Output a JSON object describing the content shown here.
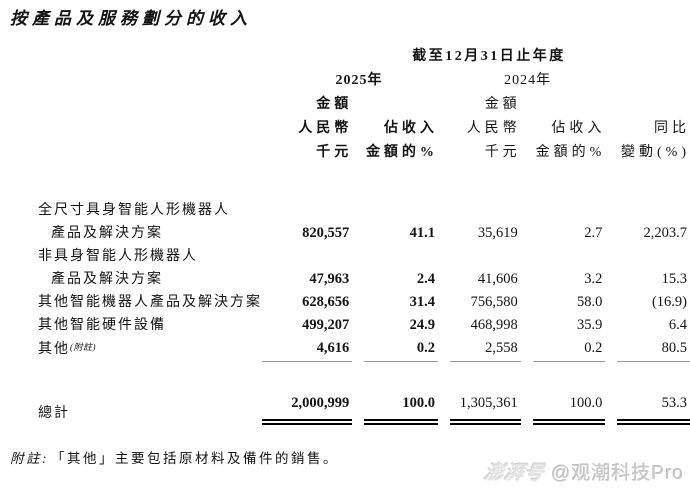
{
  "page": {
    "background": "#ffffff",
    "text_color": "#141414",
    "rule_color": "#9b9b9b",
    "total_rule_color": "#000000"
  },
  "title": "按產品及服務劃分的收入",
  "table": {
    "period_header": "截至12月31日止年度",
    "years": {
      "y2025": "2025年",
      "y2024": "2024年"
    },
    "col_headers": {
      "amount_line1": "金額",
      "amount_line2": "人民幣",
      "amount_line3": "千元",
      "share_line1": "佔收入",
      "share_line2": "金額的%",
      "yoy_line1": "同比",
      "yoy_line2": "變動(%)"
    },
    "rows": [
      {
        "label_lines": [
          "全尺寸具身智能人形機器人",
          "產品及解決方案"
        ],
        "label_note": "",
        "v2025": "820,557",
        "p2025": "41.1",
        "v2024": "35,619",
        "p2024": "2.7",
        "yoy": "2,203.7"
      },
      {
        "label_lines": [
          "非具身智能人形機器人",
          "產品及解決方案"
        ],
        "label_note": "",
        "v2025": "47,963",
        "p2025": "2.4",
        "v2024": "41,606",
        "p2024": "3.2",
        "yoy": "15.3"
      },
      {
        "label_lines": [
          "其他智能機器人產品及解決方案"
        ],
        "label_note": "",
        "v2025": "628,656",
        "p2025": "31.4",
        "v2024": "756,580",
        "p2024": "58.0",
        "yoy": "(16.9)"
      },
      {
        "label_lines": [
          "其他智能硬件設備"
        ],
        "label_note": "",
        "v2025": "499,207",
        "p2025": "24.9",
        "v2024": "468,998",
        "p2024": "35.9",
        "yoy": "6.4"
      },
      {
        "label_lines": [
          "其他"
        ],
        "label_note": "(附註)",
        "v2025": "4,616",
        "p2025": "0.2",
        "v2024": "2,558",
        "p2024": "0.2",
        "yoy": "80.5"
      }
    ],
    "total": {
      "label": "總計",
      "v2025": "2,000,999",
      "p2025": "100.0",
      "v2024": "1,305,361",
      "p2024": "100.0",
      "yoy": "53.3"
    }
  },
  "footnote": {
    "label": "附註:",
    "text": "「其他」主要包括原材料及備件的銷售。"
  },
  "watermark": {
    "logo": "澎湃号",
    "handle": "@观潮科技Pro"
  }
}
